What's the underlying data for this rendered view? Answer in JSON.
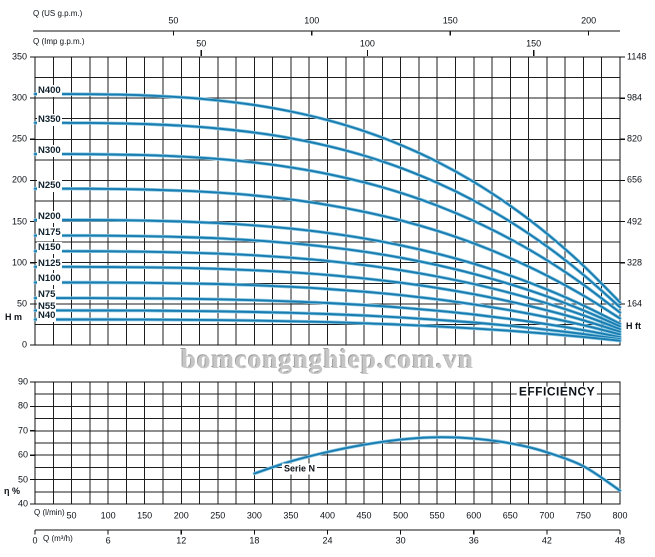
{
  "watermark": "bomcongnghiep.com.vn",
  "colors": {
    "curve": "#197cb1",
    "curve_halo": "#8ac8e2",
    "grid": "#1e1e1e",
    "frame": "#101010",
    "text": "#0c1218",
    "curve_label_text": "#10222f",
    "watermark": "#c6c6c6"
  },
  "chart_data": [
    {
      "type": "line",
      "name": "head-flow-curves",
      "x": {
        "unit": "l/min",
        "min": 0,
        "max": 800,
        "grid_step": 25
      },
      "x_axes": [
        {
          "label": "Q (US g.p.m.)",
          "ticks": [
            50,
            100,
            150,
            200
          ],
          "lmin_per_unit": 3.7854
        },
        {
          "label": "Q (Imp g.p.m.)",
          "ticks": [
            50,
            100,
            150
          ],
          "lmin_per_unit": 4.5461
        }
      ],
      "y_left": {
        "label": "H m",
        "min": 0,
        "max": 350,
        "grid_step": 25,
        "ticks": [
          0,
          50,
          100,
          150,
          200,
          250,
          300,
          350
        ]
      },
      "y_right": {
        "label": "H ft",
        "ticks": [
          164,
          328,
          492,
          656,
          820,
          984,
          1148
        ],
        "ft_per_m": 3.2808
      },
      "droop": {
        "k": 0.83,
        "n": 3
      },
      "series": [
        {
          "name": "N400",
          "h0": 305
        },
        {
          "name": "N350",
          "h0": 270
        },
        {
          "name": "N300",
          "h0": 232
        },
        {
          "name": "N250",
          "h0": 190
        },
        {
          "name": "N200",
          "h0": 152
        },
        {
          "name": "N175",
          "h0": 133
        },
        {
          "name": "N150",
          "h0": 114
        },
        {
          "name": "N125",
          "h0": 95
        },
        {
          "name": "N100",
          "h0": 76
        },
        {
          "name": "N75",
          "h0": 57
        },
        {
          "name": "N55",
          "h0": 42
        },
        {
          "name": "N40",
          "h0": 31
        }
      ]
    },
    {
      "type": "line",
      "name": "efficiency-curve",
      "title": "EFFICIENCY",
      "series_label": "Serie N",
      "y": {
        "label": "η %",
        "min": 40,
        "max": 90,
        "grid_step": 5,
        "ticks": [
          40,
          50,
          60,
          70,
          80,
          90
        ]
      },
      "x_axes": [
        {
          "label": "Q (l/min)",
          "ticks": [
            50,
            100,
            150,
            200,
            250,
            300,
            350,
            400,
            450,
            500,
            550,
            600,
            650,
            700,
            750,
            800
          ],
          "lmin_per_unit": 1
        },
        {
          "label": "Q (m³/h)",
          "ticks": [
            0,
            6,
            12,
            18,
            24,
            30,
            36,
            42,
            48
          ],
          "lmin_per_unit": 16.6667
        }
      ],
      "series": [
        {
          "name": "Serie N",
          "points": [
            [
              300,
              52.5
            ],
            [
              350,
              57.5
            ],
            [
              400,
              61.3
            ],
            [
              450,
              64.3
            ],
            [
              500,
              66.4
            ],
            [
              540,
              67.3
            ],
            [
              580,
              67.2
            ],
            [
              620,
              66.2
            ],
            [
              660,
              64.3
            ],
            [
              700,
              61.2
            ],
            [
              750,
              55.5
            ],
            [
              800,
              45.5
            ]
          ]
        }
      ]
    }
  ]
}
